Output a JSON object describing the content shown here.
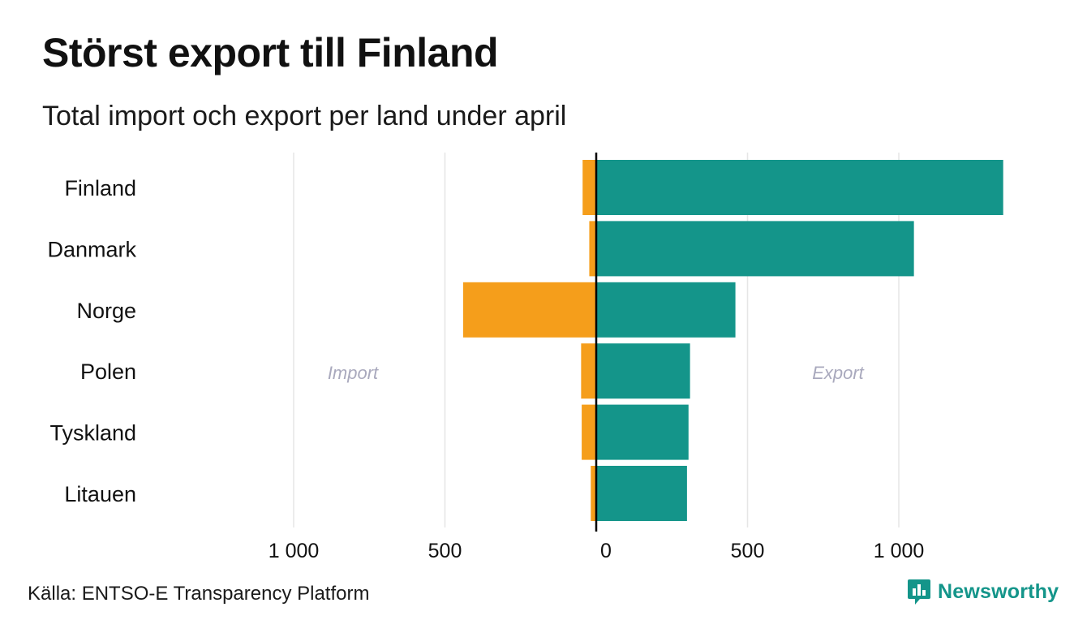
{
  "title": "Störst export till Finland",
  "subtitle": "Total import och export per land under april",
  "source": "Källa: ENTSO-E Transparency Platform",
  "brand": {
    "name": "Newsworthy",
    "icon": "bar-chart-speech-bubble-icon"
  },
  "colors": {
    "import": "#f59e1b",
    "export": "#14958a",
    "grid": "#e6e6e6",
    "zero_line": "#000000",
    "side_label": "#a9a9bd"
  },
  "chart_data": {
    "type": "bar",
    "orientation": "horizontal",
    "stacked": "diverging",
    "categories": [
      "Finland",
      "Danmark",
      "Norge",
      "Polen",
      "Tyskland",
      "Litauen"
    ],
    "series": [
      {
        "name": "Import",
        "values": [
          45,
          23,
          440,
          50,
          48,
          18
        ]
      },
      {
        "name": "Export",
        "values": [
          1345,
          1050,
          460,
          310,
          305,
          300
        ]
      }
    ],
    "xlim": [
      -1000,
      1345
    ],
    "xticks": [
      -1000,
      -500,
      0,
      500,
      1000
    ],
    "xtick_labels": [
      "1 000",
      "500",
      "0",
      "500",
      "1 000"
    ],
    "side_labels": {
      "left": "Import",
      "right": "Export"
    },
    "grid": true,
    "legend": "none"
  }
}
